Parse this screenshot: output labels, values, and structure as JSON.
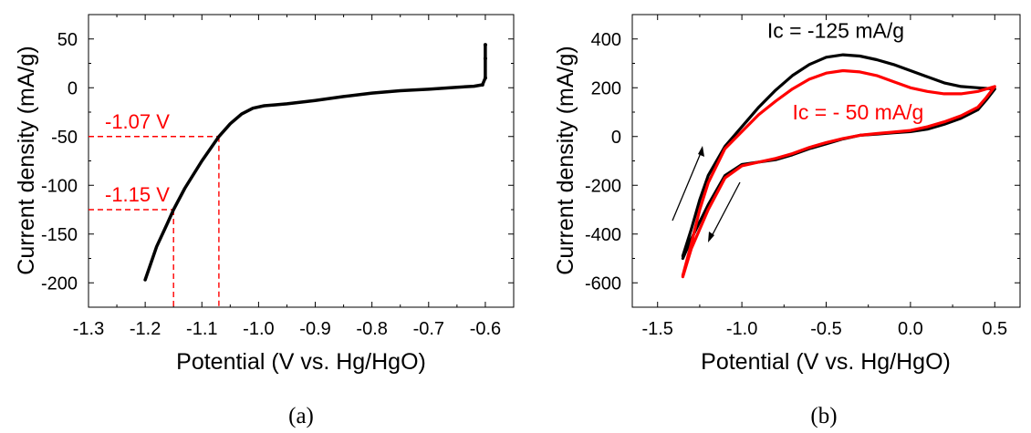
{
  "chart_data": [
    {
      "type": "line",
      "panel_label": "(a)",
      "xlabel": "Potential (V vs. Hg/HgO)",
      "ylabel": "Current density (mA/g)",
      "xlim": [
        -1.3,
        -0.55
      ],
      "ylim": [
        -225,
        75
      ],
      "xticks": [
        -1.3,
        -1.2,
        -1.1,
        -1.0,
        -0.9,
        -0.8,
        -0.7,
        -0.6
      ],
      "xtick_labels": [
        "-1.3",
        "-1.2",
        "-1.1",
        "-1.0",
        "-0.9",
        "-0.8",
        "-0.7",
        "-0.6"
      ],
      "yticks": [
        50,
        0,
        -50,
        -100,
        -150,
        -200
      ],
      "ytick_labels": [
        "50",
        "0",
        "-50",
        "-100",
        "-150",
        "-200"
      ],
      "grid": false,
      "series": [
        {
          "color": "#000000",
          "x": [
            -1.2,
            -1.18,
            -1.16,
            -1.15,
            -1.13,
            -1.1,
            -1.07,
            -1.05,
            -1.03,
            -1.01,
            -0.99,
            -0.97,
            -0.95,
            -0.9,
            -0.85,
            -0.8,
            -0.75,
            -0.7,
            -0.65,
            -0.62,
            -0.605,
            -0.6,
            -0.6,
            -0.6
          ],
          "y": [
            -197,
            -163,
            -138,
            -125,
            -103,
            -75,
            -50,
            -37,
            -27,
            -21,
            -18.5,
            -17.5,
            -16.5,
            -13,
            -9,
            -5.5,
            -3,
            -1.5,
            0.5,
            1.5,
            3,
            10,
            30,
            44
          ]
        }
      ],
      "annotations": [
        {
          "text": "-1.07 V",
          "x": -1.07,
          "y": -50,
          "color": "#ff0000"
        },
        {
          "text": "-1.15 V",
          "x": -1.15,
          "y": -125,
          "color": "#ff0000"
        }
      ]
    },
    {
      "type": "line",
      "panel_label": "(b)",
      "xlabel": "Potential (V vs. Hg/HgO)",
      "ylabel": "Current density (mA/g)",
      "xlim": [
        -1.65,
        0.65
      ],
      "ylim": [
        -700,
        500
      ],
      "xticks": [
        -1.5,
        -1.0,
        -0.5,
        0.0,
        0.5
      ],
      "xtick_labels": [
        "-1.5",
        "-1.0",
        "-0.5",
        "0.0",
        "0.5"
      ],
      "yticks": [
        400,
        200,
        0,
        -200,
        -400,
        -600
      ],
      "ytick_labels": [
        "400",
        "200",
        "0",
        "-200",
        "-400",
        "-600"
      ],
      "grid": false,
      "series": [
        {
          "name": "Ic = -125 mA/g",
          "color": "#000000",
          "x": [
            -1.35,
            -1.3,
            -1.25,
            -1.2,
            -1.1,
            -1.0,
            -0.9,
            -0.8,
            -0.7,
            -0.6,
            -0.5,
            -0.4,
            -0.3,
            -0.2,
            -0.1,
            0.0,
            0.1,
            0.2,
            0.3,
            0.4,
            0.5,
            0.45,
            0.4,
            0.3,
            0.2,
            0.1,
            0.0,
            -0.1,
            -0.2,
            -0.3,
            -0.4,
            -0.5,
            -0.6,
            -0.7,
            -0.8,
            -0.9,
            -1.0,
            -1.1,
            -1.2,
            -1.3,
            -1.35
          ],
          "y": [
            -490,
            -380,
            -260,
            -160,
            -40,
            40,
            120,
            190,
            250,
            295,
            325,
            335,
            330,
            315,
            295,
            270,
            245,
            220,
            205,
            200,
            195,
            150,
            110,
            75,
            50,
            30,
            20,
            15,
            10,
            5,
            -10,
            -30,
            -50,
            -75,
            -95,
            -105,
            -115,
            -160,
            -280,
            -420,
            -500
          ]
        },
        {
          "name": "Ic = - 50 mA/g",
          "color": "#ff0000",
          "x": [
            -1.35,
            -1.3,
            -1.25,
            -1.2,
            -1.1,
            -1.0,
            -0.9,
            -0.8,
            -0.7,
            -0.6,
            -0.5,
            -0.4,
            -0.3,
            -0.2,
            -0.1,
            0.0,
            0.1,
            0.2,
            0.3,
            0.4,
            0.5,
            0.45,
            0.4,
            0.3,
            0.2,
            0.1,
            0.0,
            -0.1,
            -0.2,
            -0.3,
            -0.4,
            -0.5,
            -0.6,
            -0.7,
            -0.8,
            -0.9,
            -1.0,
            -1.1,
            -1.2,
            -1.3,
            -1.35
          ],
          "y": [
            -570,
            -440,
            -300,
            -190,
            -50,
            20,
            90,
            145,
            195,
            235,
            260,
            270,
            265,
            250,
            225,
            200,
            185,
            175,
            175,
            185,
            205,
            160,
            120,
            85,
            60,
            40,
            25,
            18,
            12,
            5,
            -8,
            -25,
            -45,
            -70,
            -90,
            -105,
            -120,
            -170,
            -300,
            -460,
            -575
          ]
        }
      ],
      "annotations": [
        {
          "text": "Ic = -125 mA/g",
          "x": -0.85,
          "y": 405,
          "color": "#000000"
        },
        {
          "text": "Ic = - 50 mA/g",
          "x": -0.7,
          "y": 70,
          "color": "#ff0000"
        }
      ]
    }
  ]
}
